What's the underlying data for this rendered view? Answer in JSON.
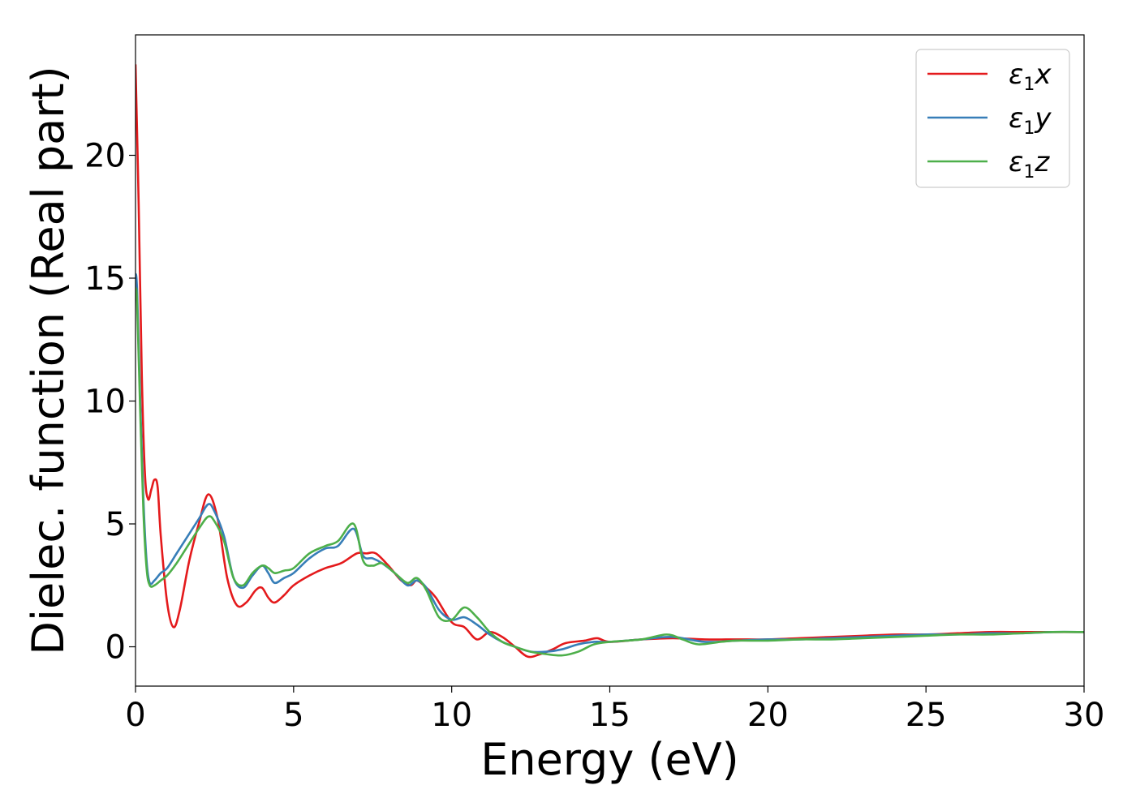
{
  "chart_data": {
    "type": "line",
    "title": "",
    "xlabel": "Energy (eV)",
    "ylabel": "Dielec. function (Real part)",
    "xlim": [
      0,
      30
    ],
    "ylim": [
      -1.6,
      24.9
    ],
    "xticks": [
      0,
      5,
      10,
      15,
      20,
      25,
      30
    ],
    "yticks": [
      0,
      5,
      10,
      15,
      20
    ],
    "grid": false,
    "legend_position": "top-right",
    "series": [
      {
        "name": "ε1x",
        "name_symbol": "ε",
        "name_subscript": "1",
        "name_suffix": "x",
        "color": "#e41a1c",
        "x": [
          0,
          0.1,
          0.2,
          0.3,
          0.4,
          0.5,
          0.6,
          0.7,
          0.8,
          1.0,
          1.2,
          1.4,
          1.7,
          2.0,
          2.3,
          2.6,
          2.9,
          3.2,
          3.5,
          3.8,
          4.0,
          4.2,
          4.4,
          4.7,
          5.0,
          5.5,
          6.0,
          6.5,
          7.0,
          7.3,
          7.6,
          8.0,
          8.4,
          8.7,
          8.9,
          9.2,
          9.5,
          10.0,
          10.4,
          10.8,
          11.2,
          11.6,
          12.0,
          12.4,
          12.8,
          13.2,
          13.6,
          14.2,
          14.6,
          15.0,
          16.0,
          17.0,
          18.0,
          19.0,
          20.0,
          21.0,
          22.0,
          23.0,
          24.0,
          25.0,
          26.0,
          27.0,
          28.0,
          29.0,
          30.0
        ],
        "y": [
          23.7,
          18.0,
          11.0,
          7.0,
          6.0,
          6.4,
          6.8,
          6.5,
          4.5,
          1.8,
          0.8,
          1.5,
          3.5,
          5.0,
          6.2,
          5.2,
          2.8,
          1.7,
          1.8,
          2.3,
          2.4,
          2.0,
          1.8,
          2.1,
          2.5,
          2.9,
          3.2,
          3.4,
          3.8,
          3.8,
          3.8,
          3.3,
          2.7,
          2.5,
          2.7,
          2.4,
          2.0,
          1.0,
          0.8,
          0.3,
          0.6,
          0.4,
          0.0,
          -0.4,
          -0.3,
          -0.1,
          0.15,
          0.25,
          0.35,
          0.2,
          0.3,
          0.35,
          0.3,
          0.3,
          0.3,
          0.35,
          0.4,
          0.45,
          0.5,
          0.5,
          0.55,
          0.6,
          0.6,
          0.6,
          0.6
        ]
      },
      {
        "name": "ε1y",
        "name_symbol": "ε",
        "name_subscript": "1",
        "name_suffix": "y",
        "color": "#377eb8",
        "x": [
          0,
          0.05,
          0.15,
          0.25,
          0.35,
          0.45,
          0.6,
          0.8,
          1.0,
          1.3,
          1.6,
          2.0,
          2.3,
          2.5,
          2.8,
          3.1,
          3.4,
          3.7,
          4.0,
          4.2,
          4.4,
          4.7,
          5.0,
          5.5,
          6.0,
          6.4,
          6.9,
          7.2,
          7.5,
          7.8,
          8.2,
          8.6,
          8.9,
          9.2,
          9.6,
          10.0,
          10.4,
          10.8,
          11.2,
          11.6,
          12.0,
          12.5,
          13.0,
          13.5,
          14.0,
          14.5,
          15.0,
          16.0,
          17.0,
          18.0,
          19.0,
          20.0,
          21.0,
          22.0,
          23.0,
          24.0,
          25.0,
          26.0,
          27.0,
          28.0,
          29.0,
          30.0
        ],
        "y": [
          15.2,
          14.5,
          10.0,
          6.0,
          3.5,
          2.6,
          2.7,
          3.0,
          3.2,
          3.8,
          4.4,
          5.2,
          5.8,
          5.5,
          4.5,
          2.8,
          2.4,
          2.9,
          3.3,
          3.0,
          2.6,
          2.8,
          3.0,
          3.6,
          4.0,
          4.1,
          4.8,
          3.7,
          3.6,
          3.4,
          3.0,
          2.5,
          2.7,
          2.4,
          1.5,
          1.1,
          1.2,
          0.9,
          0.5,
          0.2,
          0.0,
          -0.2,
          -0.2,
          -0.1,
          0.1,
          0.2,
          0.2,
          0.3,
          0.4,
          0.2,
          0.25,
          0.3,
          0.3,
          0.35,
          0.4,
          0.45,
          0.5,
          0.5,
          0.55,
          0.55,
          0.6,
          0.6
        ]
      },
      {
        "name": "ε1z",
        "name_symbol": "ε",
        "name_subscript": "1",
        "name_suffix": "z",
        "color": "#4daf4a",
        "x": [
          0,
          0.05,
          0.15,
          0.25,
          0.35,
          0.45,
          0.6,
          0.8,
          1.0,
          1.3,
          1.6,
          2.0,
          2.3,
          2.5,
          2.8,
          3.1,
          3.4,
          3.7,
          4.0,
          4.2,
          4.4,
          4.7,
          5.0,
          5.5,
          6.0,
          6.4,
          6.9,
          7.2,
          7.5,
          7.8,
          8.2,
          8.6,
          8.9,
          9.2,
          9.6,
          10.0,
          10.4,
          10.8,
          11.2,
          11.6,
          12.0,
          12.5,
          13.0,
          13.5,
          14.0,
          14.5,
          15.0,
          16.0,
          16.8,
          17.3,
          17.8,
          18.5,
          19.0,
          20.0,
          21.0,
          22.0,
          23.0,
          24.0,
          25.0,
          26.0,
          27.0,
          28.0,
          29.0,
          30.0
        ],
        "y": [
          14.6,
          14.0,
          9.5,
          5.5,
          3.2,
          2.5,
          2.5,
          2.7,
          2.9,
          3.4,
          4.0,
          4.8,
          5.3,
          5.1,
          4.3,
          2.8,
          2.5,
          3.0,
          3.3,
          3.2,
          3.0,
          3.1,
          3.2,
          3.8,
          4.1,
          4.3,
          5.0,
          3.5,
          3.3,
          3.4,
          3.0,
          2.6,
          2.8,
          2.3,
          1.2,
          1.1,
          1.6,
          1.2,
          0.6,
          0.2,
          0.0,
          -0.2,
          -0.3,
          -0.35,
          -0.2,
          0.1,
          0.2,
          0.3,
          0.5,
          0.3,
          0.1,
          0.2,
          0.25,
          0.25,
          0.3,
          0.3,
          0.35,
          0.4,
          0.45,
          0.5,
          0.5,
          0.55,
          0.6,
          0.6
        ]
      }
    ]
  }
}
